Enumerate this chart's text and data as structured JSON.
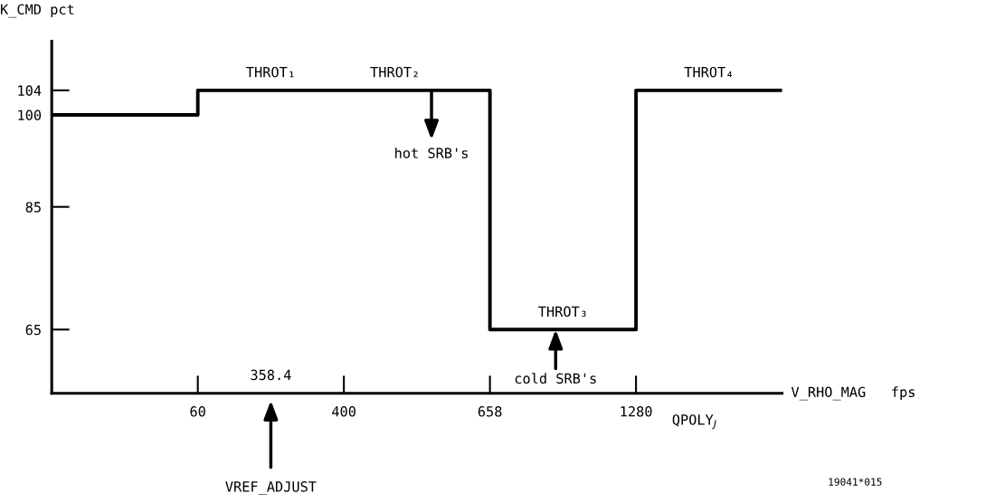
{
  "chart_data": {
    "type": "step",
    "xlabel": "V_RHO_MAG   fps",
    "ylabel": "K_CMD pct",
    "categories": [
      null,
      "60",
      "400",
      "658",
      "1280",
      null
    ],
    "series": [
      {
        "color": "#000000",
        "values": [
          100,
          104,
          104,
          65,
          104,
          104
        ]
      }
    ],
    "ylim": [
      54.6,
      112
    ],
    "yticks": [
      65,
      85,
      100,
      104
    ],
    "grid": false,
    "legend": false,
    "line_style": "solid",
    "marker": "none",
    "annotations": [
      "THROT₁",
      "THROT₂",
      "THROT₃",
      "THROT₄",
      {
        "text": "hot SRB's",
        "y": 104
      },
      {
        "text": "cold SRB's",
        "y": 65
      },
      "358.4",
      "VREF_ADJUST",
      "QPOLY$_{J}$",
      "19041*015"
    ]
  }
}
